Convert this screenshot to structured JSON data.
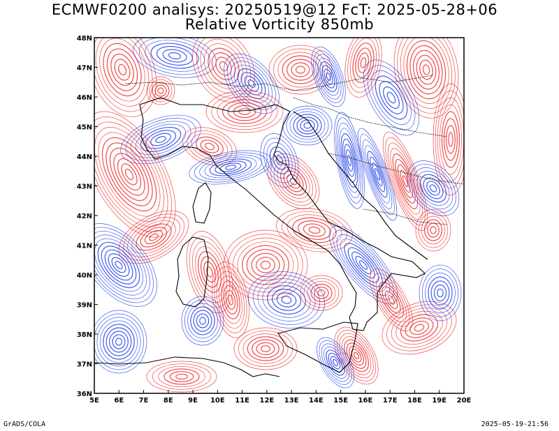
{
  "header": {
    "title_line1": "ECMWF0200 analisys: 20250519@12 FcT: 2025-05-28+06",
    "title_line2": "Relative Vorticity 850mb"
  },
  "map": {
    "lon_range": [
      5,
      20
    ],
    "lat_range": [
      36,
      48
    ],
    "lon_labels": [
      "5E",
      "6E",
      "7E",
      "8E",
      "9E",
      "10E",
      "11E",
      "12E",
      "13E",
      "14E",
      "15E",
      "16E",
      "17E",
      "18E",
      "19E",
      "20E"
    ],
    "lat_labels": [
      "36N",
      "37N",
      "38N",
      "39N",
      "40N",
      "41N",
      "42N",
      "43N",
      "44N",
      "45N",
      "46N",
      "47N",
      "48N"
    ],
    "colors": {
      "positive": "#f02828",
      "negative": "#2040e8",
      "coast": "#000000",
      "border": "#000000"
    }
  },
  "footer": {
    "left": "GrADS/COLA",
    "right": "2025-05-19-21:56"
  }
}
